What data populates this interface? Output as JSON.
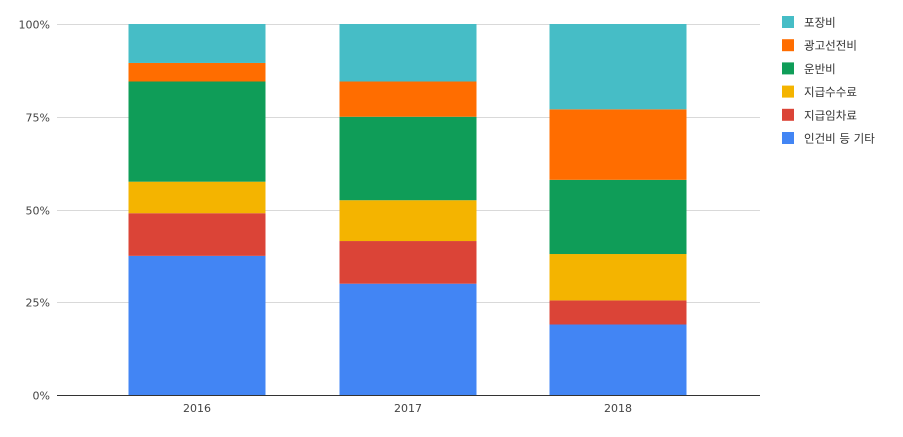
{
  "chart_data": {
    "type": "bar",
    "stacked": true,
    "normalized": true,
    "categories": [
      "2016",
      "2017",
      "2018"
    ],
    "ylim": [
      0,
      100
    ],
    "yticks": [
      0,
      25,
      50,
      75,
      100
    ],
    "ytick_labels": [
      "0%",
      "25%",
      "50%",
      "75%",
      "100%"
    ],
    "grid": true,
    "legend_position": "right",
    "series": [
      {
        "name": "인건비 등 기타",
        "color": "#4285f4",
        "values": [
          37.5,
          30.0,
          19.0
        ]
      },
      {
        "name": "지급임차료",
        "color": "#db4437",
        "values": [
          11.5,
          11.5,
          6.5
        ]
      },
      {
        "name": "지급수수료",
        "color": "#f4b400",
        "values": [
          8.5,
          11.0,
          12.5
        ]
      },
      {
        "name": "운반비",
        "color": "#0f9d58",
        "values": [
          27.0,
          22.5,
          20.0
        ]
      },
      {
        "name": "광고선전비",
        "color": "#ff6d00",
        "values": [
          5.0,
          9.5,
          19.0
        ]
      },
      {
        "name": "포장비",
        "color": "#46bdc6",
        "values": [
          10.5,
          15.5,
          23.0
        ]
      }
    ]
  }
}
